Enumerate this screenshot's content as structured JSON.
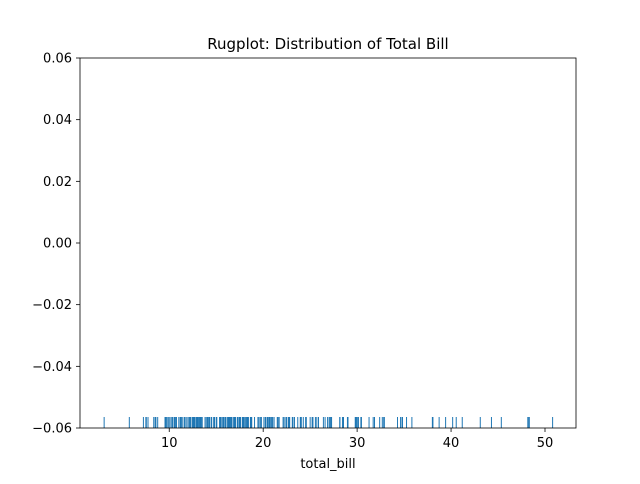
{
  "chart_data": {
    "type": "rug",
    "title": "Rugplot: Distribution of Total Bill",
    "xlabel": "total_bill",
    "ylabel": "",
    "xlim": [
      0.5,
      53.3
    ],
    "ylim": [
      -0.06,
      0.06
    ],
    "x_ticks": [
      10,
      20,
      30,
      40,
      50
    ],
    "x_tick_labels": [
      "10",
      "20",
      "30",
      "40",
      "50"
    ],
    "y_ticks": [
      -0.06,
      -0.04,
      -0.02,
      0.0,
      0.02,
      0.04,
      0.06
    ],
    "y_tick_labels": [
      "−0.06",
      "−0.04",
      "−0.02",
      "0.00",
      "0.02",
      "0.04",
      "0.06"
    ],
    "grid": false,
    "rug_color": "#1f77b4",
    "x": [
      3.07,
      5.75,
      7.25,
      7.51,
      7.56,
      7.74,
      8.35,
      8.51,
      8.52,
      8.58,
      8.77,
      9.55,
      9.6,
      9.68,
      9.78,
      9.94,
      10.07,
      10.09,
      10.27,
      10.29,
      10.33,
      10.34,
      10.51,
      10.59,
      10.63,
      10.65,
      10.77,
      11.02,
      11.17,
      11.24,
      11.35,
      11.38,
      11.59,
      11.61,
      11.69,
      11.87,
      12.02,
      12.16,
      12.26,
      12.43,
      12.46,
      12.54,
      12.6,
      12.66,
      12.69,
      12.74,
      12.76,
      12.9,
      13.0,
      13.03,
      13.13,
      13.16,
      13.27,
      13.28,
      13.37,
      13.39,
      13.42,
      13.51,
      13.81,
      13.94,
      14.07,
      14.15,
      14.26,
      14.31,
      14.48,
      14.52,
      14.73,
      14.78,
      14.83,
      15.01,
      15.04,
      15.06,
      15.36,
      15.38,
      15.42,
      15.48,
      15.53,
      15.69,
      15.77,
      15.81,
      15.95,
      15.98,
      16.0,
      16.04,
      16.21,
      16.27,
      16.29,
      16.31,
      16.4,
      16.43,
      16.45,
      16.47,
      16.49,
      16.58,
      16.66,
      16.82,
      16.93,
      16.97,
      16.99,
      17.07,
      17.26,
      17.29,
      17.31,
      17.46,
      17.47,
      17.51,
      17.59,
      17.78,
      17.81,
      17.82,
      17.89,
      17.92,
      18.04,
      18.15,
      18.24,
      18.28,
      18.29,
      18.35,
      18.43,
      18.64,
      18.69,
      18.71,
      18.78,
      19.08,
      19.44,
      19.49,
      19.65,
      19.77,
      19.81,
      20.08,
      20.23,
      20.29,
      20.45,
      20.49,
      20.53,
      20.65,
      20.69,
      20.76,
      20.9,
      20.92,
      21.01,
      21.16,
      21.5,
      21.58,
      21.7,
      22.12,
      22.23,
      22.42,
      22.49,
      22.67,
      22.75,
      22.82,
      23.1,
      23.17,
      23.33,
      23.68,
      23.95,
      24.01,
      24.06,
      24.27,
      24.52,
      24.55,
      24.59,
      25.0,
      25.21,
      25.28,
      25.29,
      25.56,
      25.71,
      25.89,
      26.41,
      26.59,
      26.86,
      26.88,
      27.05,
      27.18,
      27.2,
      27.28,
      28.15,
      28.17,
      28.44,
      28.55,
      28.97,
      29.03,
      29.8,
      29.85,
      29.93,
      30.06,
      30.14,
      30.4,
      30.46,
      31.27,
      31.71,
      31.85,
      32.4,
      32.68,
      32.83,
      32.9,
      34.3,
      34.63,
      34.65,
      34.81,
      34.83,
      35.26,
      35.83,
      38.01,
      38.07,
      38.73,
      39.42,
      40.17,
      40.55,
      41.19,
      43.11,
      44.3,
      45.35,
      48.17,
      48.27,
      48.33,
      50.81
    ]
  }
}
